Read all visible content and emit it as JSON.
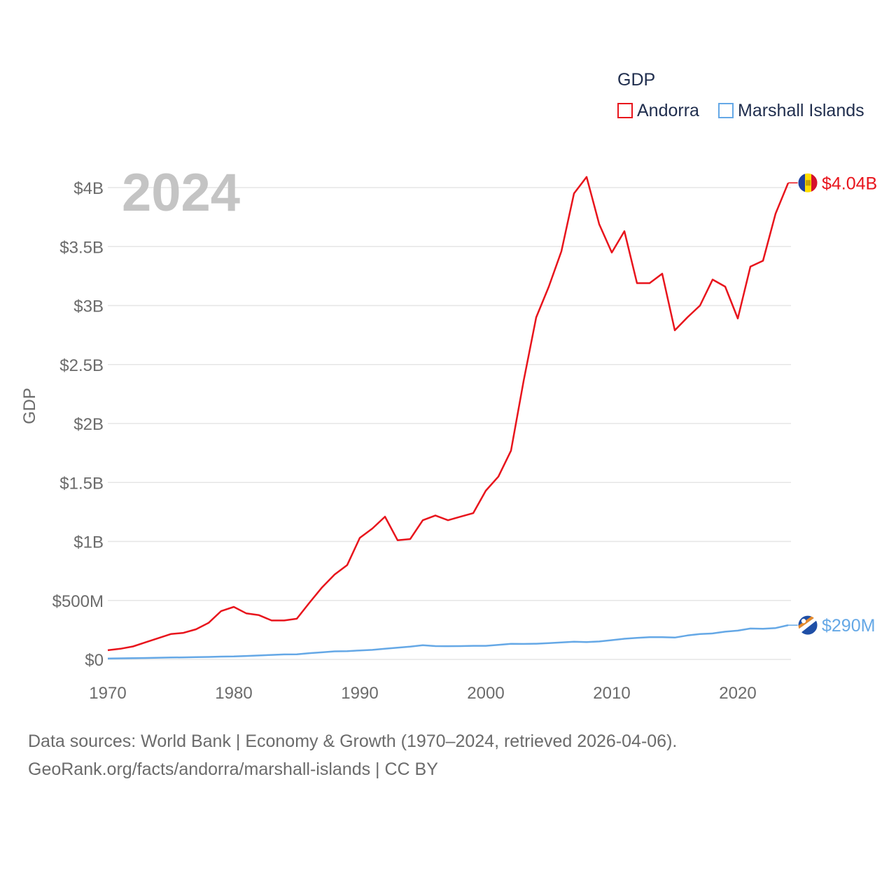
{
  "chart_data": {
    "type": "line",
    "year_label": "2024",
    "ylabel": "GDP",
    "xlabel": "",
    "xlim": [
      1970,
      2024
    ],
    "ylim": [
      0,
      4000000000
    ],
    "x_ticks": [
      1970,
      1980,
      1990,
      2000,
      2010,
      2020
    ],
    "y_ticks": [
      {
        "value": 0,
        "label": "$0"
      },
      {
        "value": 500000000,
        "label": "$500M"
      },
      {
        "value": 1000000000,
        "label": "$1B"
      },
      {
        "value": 1500000000,
        "label": "$1.5B"
      },
      {
        "value": 2000000000,
        "label": "$2B"
      },
      {
        "value": 2500000000,
        "label": "$2.5B"
      },
      {
        "value": 3000000000,
        "label": "$3B"
      },
      {
        "value": 3500000000,
        "label": "$3.5B"
      },
      {
        "value": 4000000000,
        "label": "$4B"
      }
    ],
    "legend_title": "GDP",
    "x": [
      1970,
      1971,
      1972,
      1973,
      1974,
      1975,
      1976,
      1977,
      1978,
      1979,
      1980,
      1981,
      1982,
      1983,
      1984,
      1985,
      1986,
      1987,
      1988,
      1989,
      1990,
      1991,
      1992,
      1993,
      1994,
      1995,
      1996,
      1997,
      1998,
      1999,
      2000,
      2001,
      2002,
      2003,
      2004,
      2005,
      2006,
      2007,
      2008,
      2009,
      2010,
      2011,
      2012,
      2013,
      2014,
      2015,
      2016,
      2017,
      2018,
      2019,
      2020,
      2021,
      2022,
      2023,
      2024
    ],
    "series": [
      {
        "name": "Andorra",
        "color": "#e8141c",
        "end_label": "$4.04B",
        "flag": "andorra-flag",
        "values": [
          78000000,
          90000000,
          110000000,
          145000000,
          180000000,
          215000000,
          225000000,
          255000000,
          310000000,
          410000000,
          445000000,
          390000000,
          375000000,
          330000000,
          330000000,
          345000000,
          480000000,
          610000000,
          720000000,
          800000000,
          1030000000,
          1110000000,
          1210000000,
          1010000000,
          1020000000,
          1180000000,
          1220000000,
          1180000000,
          1210000000,
          1240000000,
          1430000000,
          1550000000,
          1770000000,
          2360000000,
          2900000000,
          3160000000,
          3460000000,
          3950000000,
          4090000000,
          3690000000,
          3450000000,
          3630000000,
          3190000000,
          3190000000,
          3270000000,
          2790000000,
          2900000000,
          3000000000,
          3220000000,
          3160000000,
          2890000000,
          3330000000,
          3380000000,
          3780000000,
          4040000000
        ]
      },
      {
        "name": "Marshall Islands",
        "color": "#65a8e6",
        "end_label": "$290M",
        "flag": "marshall-islands-flag",
        "values": [
          8000000,
          9000000,
          10000000,
          12000000,
          14000000,
          16000000,
          17000000,
          19000000,
          21000000,
          24000000,
          25000000,
          29000000,
          33000000,
          38000000,
          42000000,
          43000000,
          53000000,
          60000000,
          68000000,
          70000000,
          76000000,
          81000000,
          90000000,
          99000000,
          108000000,
          120000000,
          113000000,
          112000000,
          113000000,
          115000000,
          115000000,
          123000000,
          132000000,
          131000000,
          133000000,
          138000000,
          144000000,
          150000000,
          147000000,
          152000000,
          163000000,
          175000000,
          183000000,
          189000000,
          188000000,
          185000000,
          203000000,
          215000000,
          220000000,
          235000000,
          244000000,
          262000000,
          260000000,
          266000000,
          290000000
        ]
      }
    ]
  },
  "source": {
    "line1": "Data sources: World Bank | Economy & Growth (1970–2024, retrieved 2026-04-06).",
    "line2": "GeoRank.org/facts/andorra/marshall-islands | CC BY"
  }
}
